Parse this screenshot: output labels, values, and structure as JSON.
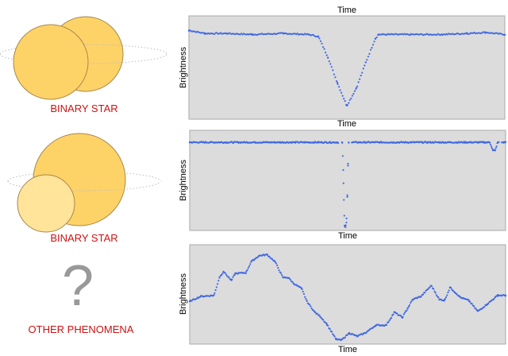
{
  "panels": [
    {
      "illustration": {
        "type": "binary-star-overlapping",
        "label": "BINARY STAR"
      },
      "chart_data": {
        "type": "scatter",
        "title": "Time",
        "xlabel": "Time",
        "ylabel": "Brightness",
        "xlim": [
          0,
          100
        ],
        "ylim": [
          0,
          1
        ],
        "grid": false,
        "series": [
          {
            "points": [
              [
                0,
                0.86
              ],
              [
                5,
                0.83
              ],
              [
                12,
                0.83
              ],
              [
                20,
                0.82
              ],
              [
                30,
                0.83
              ],
              [
                38,
                0.82
              ],
              [
                41,
                0.8
              ],
              [
                44,
                0.6
              ],
              [
                47,
                0.35
              ],
              [
                50,
                0.13
              ],
              [
                53,
                0.3
              ],
              [
                56,
                0.55
              ],
              [
                59,
                0.78
              ],
              [
                60,
                0.82
              ],
              [
                70,
                0.82
              ],
              [
                80,
                0.82
              ],
              [
                88,
                0.83
              ],
              [
                94,
                0.84
              ],
              [
                100,
                0.82
              ]
            ]
          }
        ]
      }
    },
    {
      "illustration": {
        "type": "binary-star-eclipsing",
        "label": "BINARY STAR"
      },
      "chart_data": {
        "type": "scatter",
        "xlabel": "Time",
        "ylabel": "Brightness",
        "xlim": [
          0,
          100
        ],
        "ylim": [
          0,
          1
        ],
        "grid": false,
        "series": [
          {
            "points": [
              [
                0,
                0.88
              ],
              [
                48.3,
                0.88
              ],
              [
                48.6,
                0.6
              ],
              [
                48.8,
                0.3
              ],
              [
                49.0,
                0.05
              ],
              [
                49.3,
                0.03
              ],
              [
                49.6,
                0.08
              ],
              [
                49.9,
                0.35
              ],
              [
                50.1,
                0.65
              ],
              [
                50.3,
                0.88
              ],
              [
                95,
                0.88
              ],
              [
                96,
                0.8
              ],
              [
                96.7,
                0.8
              ],
              [
                97.5,
                0.88
              ],
              [
                100,
                0.88
              ]
            ],
            "gaps": [
              [
                47.2,
                48.2
              ],
              [
                50.4,
                51.2
              ],
              [
                98,
                98.8
              ]
            ]
          }
        ]
      }
    },
    {
      "illustration": {
        "type": "question-mark",
        "symbol": "?",
        "label": "OTHER PHENOMENA"
      },
      "chart_data": {
        "type": "scatter",
        "xlabel": "Time",
        "ylabel": "Brightness",
        "xlim": [
          0,
          100
        ],
        "ylim": [
          0,
          1
        ],
        "grid": false,
        "series": [
          {
            "points": [
              [
                0,
                0.43
              ],
              [
                3.5,
                0.48
              ],
              [
                7.7,
                0.49
              ],
              [
                9.4,
                0.67
              ],
              [
                10.7,
                0.73
              ],
              [
                13.2,
                0.64
              ],
              [
                14.4,
                0.71
              ],
              [
                17.8,
                0.72
              ],
              [
                19.5,
                0.83
              ],
              [
                22,
                0.89
              ],
              [
                24.5,
                0.9
              ],
              [
                27,
                0.83
              ],
              [
                29.5,
                0.67
              ],
              [
                31.2,
                0.67
              ],
              [
                32.9,
                0.61
              ],
              [
                35.4,
                0.56
              ],
              [
                37.1,
                0.43
              ],
              [
                39.6,
                0.32
              ],
              [
                41.3,
                0.28
              ],
              [
                43.4,
                0.2
              ],
              [
                46.3,
                0.05
              ],
              [
                48,
                0.04
              ],
              [
                50.5,
                0.11
              ],
              [
                53,
                0.08
              ],
              [
                55.5,
                0.11
              ],
              [
                58.9,
                0.19
              ],
              [
                62.2,
                0.19
              ],
              [
                64.8,
                0.32
              ],
              [
                67.3,
                0.27
              ],
              [
                69,
                0.36
              ],
              [
                70.6,
                0.45
              ],
              [
                73.2,
                0.48
              ],
              [
                76.5,
                0.59
              ],
              [
                79,
                0.45
              ],
              [
                80.7,
                0.44
              ],
              [
                82.4,
                0.57
              ],
              [
                85.7,
                0.47
              ],
              [
                88.3,
                0.44
              ],
              [
                91.2,
                0.33
              ],
              [
                94.1,
                0.4
              ],
              [
                97.5,
                0.49
              ],
              [
                100,
                0.49
              ]
            ]
          }
        ]
      }
    }
  ],
  "colors": {
    "star": "#fdd368",
    "star_pale": "#ffe49a",
    "star_stroke": "#a8874a",
    "label": "#cc1111",
    "plot_bg": "#dcdcdc",
    "dots": "#4169e1",
    "question": "#999999"
  }
}
